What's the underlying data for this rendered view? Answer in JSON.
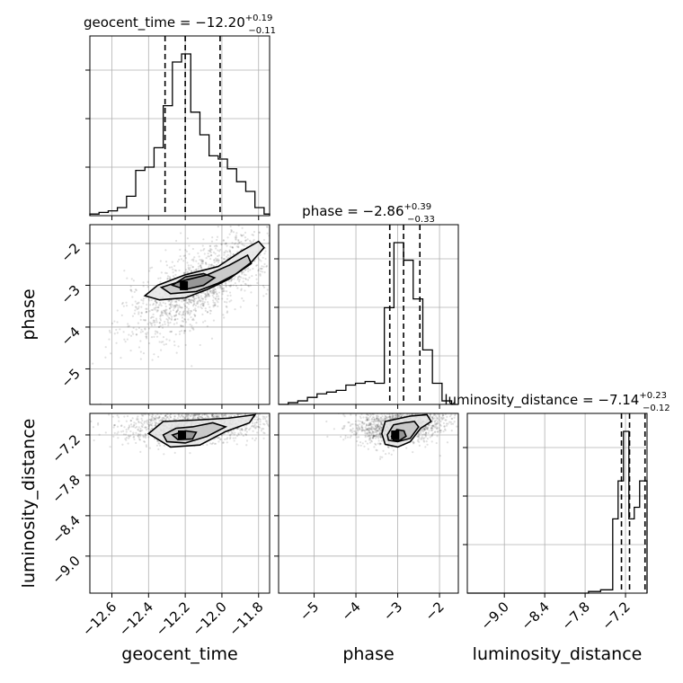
{
  "chart_data": {
    "type": "corner",
    "parameters": [
      "geocent_time",
      "phase",
      "luminosity_distance"
    ],
    "titles": [
      {
        "text": "geocent_time = −12.20",
        "sup": "+0.19",
        "sub": "−0.11"
      },
      {
        "text": "phase = −2.86",
        "sup": "+0.39",
        "sub": "−0.33"
      },
      {
        "text": "luminosity_distance = −7.14",
        "sup": "+0.23",
        "sub": "−0.12"
      }
    ],
    "ranges": {
      "geocent_time": [
        -12.72,
        -11.74
      ],
      "phase": [
        -5.85,
        -1.55
      ],
      "luminosity_distance": [
        -9.55,
        -6.88
      ]
    },
    "ticks": {
      "geocent_time": {
        "values": [
          -12.6,
          -12.4,
          -12.2,
          -12.0,
          -11.8
        ],
        "labels": [
          "−12.6",
          "−12.4",
          "−12.2",
          "−12.0",
          "−11.8"
        ]
      },
      "phase": {
        "values": [
          -5,
          -4,
          -3,
          -2
        ],
        "labels": [
          "−5",
          "−4",
          "−3",
          "−2"
        ]
      },
      "luminosity_distance": {
        "values": [
          -9.0,
          -8.4,
          -7.8,
          -7.2
        ],
        "labels": [
          "−9.0",
          "−8.4",
          "−7.8",
          "−7.2"
        ]
      }
    },
    "quantiles": {
      "geocent_time": [
        -12.31,
        -12.2,
        -12.01
      ],
      "phase": [
        -3.19,
        -2.86,
        -2.47
      ],
      "luminosity_distance": [
        -7.26,
        -7.14,
        -6.91
      ]
    },
    "histograms": {
      "geocent_time": {
        "edges": [
          -12.72,
          -12.67,
          -12.62,
          -12.57,
          -12.52,
          -12.47,
          -12.42,
          -12.37,
          -12.32,
          -12.27,
          -12.22,
          -12.17,
          -12.12,
          -12.07,
          -12.02,
          -11.97,
          -11.92,
          -11.87,
          -11.82,
          -11.77,
          -11.74
        ],
        "counts": [
          0.01,
          0.02,
          0.03,
          0.05,
          0.12,
          0.28,
          0.3,
          0.42,
          0.68,
          0.95,
          1.0,
          0.64,
          0.5,
          0.37,
          0.35,
          0.29,
          0.21,
          0.15,
          0.05,
          0.01
        ]
      },
      "phase": {
        "edges": [
          -5.85,
          -5.62,
          -5.39,
          -5.16,
          -4.93,
          -4.7,
          -4.47,
          -4.24,
          -4.01,
          -3.78,
          -3.55,
          -3.32,
          -3.09,
          -2.86,
          -2.63,
          -2.4,
          -2.17,
          -1.94,
          -1.71,
          -1.55
        ],
        "counts": [
          0.0,
          0.01,
          0.02,
          0.04,
          0.06,
          0.07,
          0.08,
          0.11,
          0.12,
          0.13,
          0.12,
          0.55,
          0.92,
          0.82,
          0.6,
          0.31,
          0.12,
          0.02,
          0.0
        ]
      },
      "luminosity_distance": {
        "edges": [
          -9.55,
          -9.37,
          -9.19,
          -9.01,
          -8.83,
          -8.65,
          -8.47,
          -8.29,
          -8.11,
          -7.93,
          -7.75,
          -7.57,
          -7.39,
          -7.31,
          -7.23,
          -7.15,
          -7.07,
          -6.99,
          -6.88
        ],
        "counts": [
          0.0,
          0.0,
          0.0,
          0.0,
          0.0,
          0.0,
          0.0,
          0.0,
          0.0,
          0.0,
          0.01,
          0.02,
          0.45,
          0.68,
          0.98,
          0.45,
          0.52,
          0.68
        ]
      }
    },
    "contours": {
      "geocent_time-phase": [
        [
          [
            -12.42,
            -3.25
          ],
          [
            -12.35,
            -3.0
          ],
          [
            -12.2,
            -2.75
          ],
          [
            -12.02,
            -2.55
          ],
          [
            -11.9,
            -2.2
          ],
          [
            -11.8,
            -1.95
          ],
          [
            -11.77,
            -2.1
          ],
          [
            -11.84,
            -2.45
          ],
          [
            -11.96,
            -2.85
          ],
          [
            -12.08,
            -3.1
          ],
          [
            -12.2,
            -3.3
          ],
          [
            -12.34,
            -3.35
          ],
          [
            -12.42,
            -3.25
          ]
        ],
        [
          [
            -12.33,
            -3.05
          ],
          [
            -12.22,
            -2.9
          ],
          [
            -12.08,
            -2.75
          ],
          [
            -11.96,
            -2.52
          ],
          [
            -11.86,
            -2.28
          ],
          [
            -11.84,
            -2.48
          ],
          [
            -11.92,
            -2.72
          ],
          [
            -12.02,
            -2.95
          ],
          [
            -12.14,
            -3.15
          ],
          [
            -12.28,
            -3.2
          ],
          [
            -12.33,
            -3.05
          ]
        ],
        [
          [
            -12.27,
            -3.0
          ],
          [
            -12.2,
            -2.8
          ],
          [
            -12.1,
            -2.72
          ],
          [
            -12.04,
            -2.82
          ],
          [
            -12.1,
            -3.0
          ],
          [
            -12.2,
            -3.1
          ],
          [
            -12.27,
            -3.0
          ]
        ]
      ],
      "geocent_time-luminosity_distance": [
        [
          [
            -12.4,
            -7.18
          ],
          [
            -12.32,
            -7.0
          ],
          [
            -12.15,
            -6.98
          ],
          [
            -11.96,
            -6.95
          ],
          [
            -11.82,
            -6.9
          ],
          [
            -11.85,
            -7.02
          ],
          [
            -11.98,
            -7.15
          ],
          [
            -12.12,
            -7.35
          ],
          [
            -12.28,
            -7.38
          ],
          [
            -12.4,
            -7.18
          ]
        ],
        [
          [
            -12.32,
            -7.2
          ],
          [
            -12.25,
            -7.1
          ],
          [
            -12.16,
            -7.08
          ],
          [
            -12.05,
            -7.02
          ],
          [
            -11.98,
            -7.08
          ],
          [
            -12.08,
            -7.22
          ],
          [
            -12.2,
            -7.32
          ],
          [
            -12.3,
            -7.3
          ],
          [
            -12.32,
            -7.2
          ]
        ],
        [
          [
            -12.27,
            -7.2
          ],
          [
            -12.2,
            -7.14
          ],
          [
            -12.14,
            -7.16
          ],
          [
            -12.16,
            -7.26
          ],
          [
            -12.24,
            -7.27
          ],
          [
            -12.27,
            -7.2
          ]
        ]
      ],
      "phase-luminosity_distance": [
        [
          [
            -3.38,
            -7.18
          ],
          [
            -3.3,
            -7.0
          ],
          [
            -3.0,
            -6.96
          ],
          [
            -2.7,
            -6.92
          ],
          [
            -2.3,
            -6.9
          ],
          [
            -2.2,
            -7.0
          ],
          [
            -2.45,
            -7.1
          ],
          [
            -2.7,
            -7.3
          ],
          [
            -3.0,
            -7.38
          ],
          [
            -3.3,
            -7.34
          ],
          [
            -3.38,
            -7.18
          ]
        ],
        [
          [
            -3.25,
            -7.2
          ],
          [
            -3.1,
            -7.05
          ],
          [
            -2.85,
            -7.02
          ],
          [
            -2.6,
            -7.0
          ],
          [
            -2.5,
            -7.08
          ],
          [
            -2.7,
            -7.25
          ],
          [
            -3.0,
            -7.3
          ],
          [
            -3.22,
            -7.28
          ],
          [
            -3.25,
            -7.2
          ]
        ],
        [
          [
            -3.15,
            -7.22
          ],
          [
            -3.02,
            -7.12
          ],
          [
            -2.85,
            -7.14
          ],
          [
            -2.8,
            -7.22
          ],
          [
            -2.95,
            -7.28
          ],
          [
            -3.1,
            -7.28
          ],
          [
            -3.15,
            -7.22
          ]
        ]
      ]
    },
    "axis_labels": {
      "x": [
        "geocent_time",
        "phase",
        "luminosity_distance"
      ],
      "y": [
        "phase",
        "luminosity_distance"
      ]
    },
    "grid": true,
    "colors": {
      "line": "#000000",
      "grid": "#b0b0b0",
      "points": "#000000"
    }
  }
}
